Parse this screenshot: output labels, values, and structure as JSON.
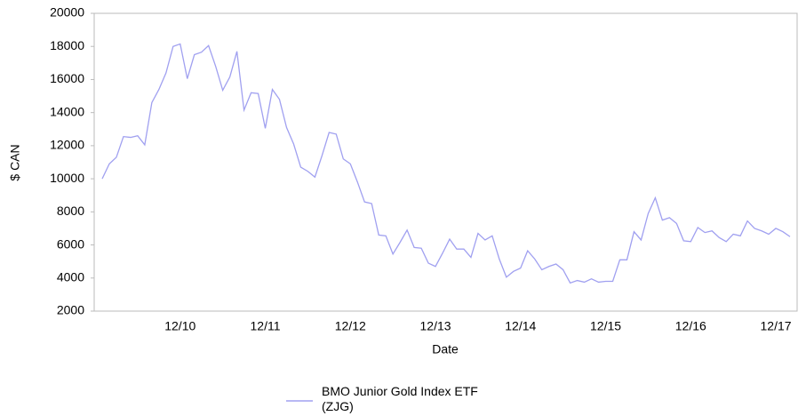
{
  "chart_data": {
    "type": "line",
    "x_label": "Date",
    "y_label": "$ CAN",
    "categories": [
      null,
      null,
      null,
      null,
      null,
      null,
      null,
      null,
      null,
      null,
      null,
      "12/10",
      null,
      null,
      null,
      null,
      null,
      null,
      null,
      null,
      null,
      null,
      null,
      "12/11",
      null,
      null,
      null,
      null,
      null,
      null,
      null,
      null,
      null,
      null,
      null,
      "12/12",
      null,
      null,
      null,
      null,
      null,
      null,
      null,
      null,
      null,
      null,
      null,
      "12/13",
      null,
      null,
      null,
      null,
      null,
      null,
      null,
      null,
      null,
      null,
      null,
      "12/14",
      null,
      null,
      null,
      null,
      null,
      null,
      null,
      null,
      null,
      null,
      null,
      "12/15",
      null,
      null,
      null,
      null,
      null,
      null,
      null,
      null,
      null,
      null,
      null,
      "12/16",
      null,
      null,
      null,
      null,
      null,
      null,
      null,
      null,
      null,
      null,
      null,
      "12/17",
      null,
      null
    ],
    "series": [
      {
        "name": "BMO Junior Gold Index ETF (ZJG)",
        "color": "#a0a0f0",
        "values": [
          10000,
          10900,
          11300,
          12550,
          12500,
          12600,
          12050,
          14600,
          15400,
          16400,
          18000,
          18150,
          16050,
          17500,
          17650,
          18050,
          16800,
          15350,
          16150,
          17700,
          14150,
          15200,
          15150,
          13050,
          15400,
          14800,
          13100,
          12100,
          10700,
          10450,
          10100,
          11400,
          12800,
          12700,
          11200,
          10900,
          9800,
          8600,
          8500,
          6600,
          6550,
          5450,
          6150,
          6900,
          5850,
          5800,
          4900,
          4700,
          5500,
          6350,
          5750,
          5750,
          5250,
          6700,
          6300,
          6550,
          5150,
          4050,
          4400,
          4600,
          5650,
          5150,
          4500,
          4700,
          4850,
          4500,
          3700,
          3850,
          3750,
          3950,
          3750,
          3800,
          3800,
          5100,
          5100,
          6800,
          6300,
          7900,
          8850,
          7500,
          7650,
          7300,
          6250,
          6200,
          7050,
          6750,
          6850,
          6450,
          6200,
          6650,
          6550,
          7450,
          7000,
          6850,
          6650,
          7000,
          6800,
          6500
        ]
      }
    ],
    "ylim": [
      2000,
      20000
    ],
    "yticks": [
      2000,
      4000,
      6000,
      8000,
      10000,
      12000,
      14000,
      16000,
      18000,
      20000
    ],
    "grid": false,
    "legend": "bottom"
  }
}
